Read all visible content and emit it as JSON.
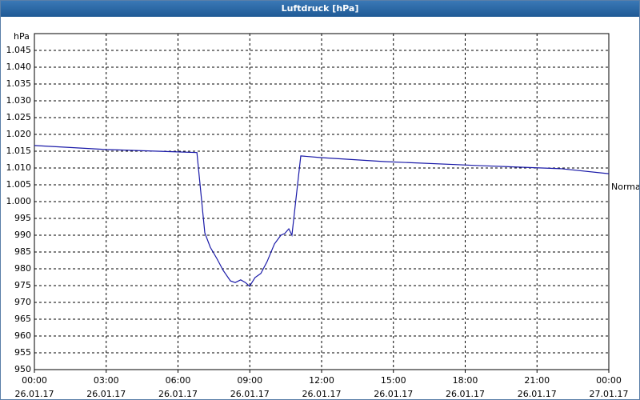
{
  "chart_data": {
    "type": "line",
    "title": "Luftdruck [hPa]",
    "y_unit": "hPa",
    "x": [
      0,
      3,
      6,
      6.79,
      7.12,
      7.35,
      7.62,
      7.89,
      8.19,
      8.39,
      8.62,
      8.82,
      8.99,
      9.22,
      9.46,
      9.72,
      10.03,
      10.3,
      10.46,
      10.63,
      10.76,
      11.13,
      11.97,
      14.64,
      18.65,
      21.99,
      24
    ],
    "values": [
      1016.7,
      1015.5,
      1014.8,
      1014.6,
      990.7,
      986.4,
      983.1,
      979.5,
      976.4,
      975.9,
      976.7,
      975.9,
      974.8,
      977.4,
      978.6,
      982.1,
      987.4,
      990.0,
      990.5,
      991.9,
      990.0,
      1013.6,
      1013.1,
      1011.9,
      1010.7,
      1009.8,
      1008.3
    ],
    "color": "#1a1aa8",
    "xlim": [
      0,
      24
    ],
    "xticks": [
      {
        "value": 0,
        "label": "00:00\n26.01.17"
      },
      {
        "value": 3,
        "label": "03:00\n26.01.17"
      },
      {
        "value": 6,
        "label": "06:00\n26.01.17"
      },
      {
        "value": 9,
        "label": "09:00\n26.01.17"
      },
      {
        "value": 12,
        "label": "12:00\n26.01.17"
      },
      {
        "value": 15,
        "label": "15:00\n26.01.17"
      },
      {
        "value": 18,
        "label": "18:00\n26.01.17"
      },
      {
        "value": 21,
        "label": "21:00\n26.01.17"
      },
      {
        "value": 24,
        "label": "00:00\n27.01.17"
      }
    ],
    "ylim": [
      950,
      1050
    ],
    "yticks": [
      950,
      955,
      960,
      965,
      970,
      975,
      980,
      985,
      990,
      995,
      {
        "value": 1000,
        "label": "1.000"
      },
      {
        "value": 1005,
        "label": "1.005"
      },
      {
        "value": 1010,
        "label": "1.010"
      },
      {
        "value": 1015,
        "label": "1.015"
      },
      {
        "value": 1020,
        "label": "1.020"
      },
      {
        "value": 1025,
        "label": "1.025"
      },
      {
        "value": 1030,
        "label": "1.030"
      },
      {
        "value": 1035,
        "label": "1.035"
      },
      {
        "value": 1040,
        "label": "1.040"
      },
      {
        "value": 1045,
        "label": "1.045"
      }
    ],
    "grid": true,
    "reference": {
      "label": "Normal",
      "value": 1004.3
    }
  }
}
